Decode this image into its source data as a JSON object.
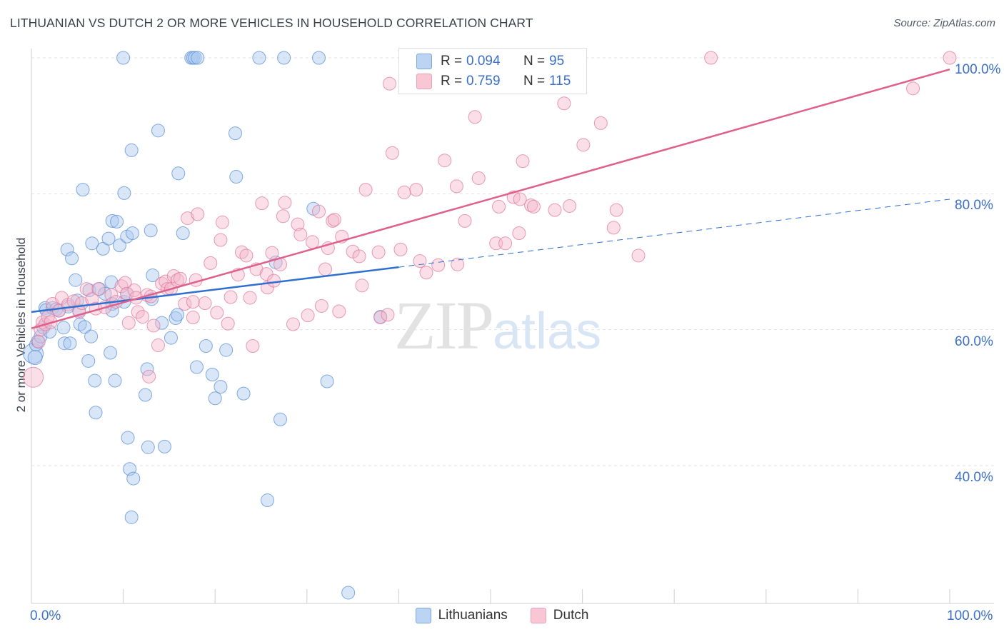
{
  "title": "LITHUANIAN VS DUTCH 2 OR MORE VEHICLES IN HOUSEHOLD CORRELATION CHART",
  "source": "Source: ZipAtlas.com",
  "watermark": {
    "zip": "ZIP",
    "atlas": "atlas"
  },
  "legend": {
    "rows": [
      {
        "r_label": "R =",
        "r_value": "0.094",
        "n_label": "N =",
        "n_value": "95"
      },
      {
        "r_label": "R =",
        "r_value": "0.759",
        "n_label": "N =",
        "n_value": "115"
      }
    ],
    "bottom": [
      "Lithuanians",
      "Dutch"
    ]
  },
  "colors": {
    "lithuanians_fill": "#a9c8ef",
    "lithuanians_stroke": "#5b8fd6",
    "lithuanians_line": "#2f6fd0",
    "dutch_fill": "#f5b8cb",
    "dutch_stroke": "#e07a9d",
    "dutch_line": "#e0608c",
    "tick_text": "#3b6fc9",
    "grid": "#e3e3e3"
  },
  "chart_data": {
    "type": "scatter",
    "title": "LITHUANIAN VS DUTCH 2 OR MORE VEHICLES IN HOUSEHOLD CORRELATION CHART",
    "xlabel": "",
    "ylabel": "2 or more Vehicles in Household",
    "xlim": [
      0,
      100
    ],
    "ylim": [
      20,
      102
    ],
    "x_tick_labels": [
      "0.0%",
      "100.0%"
    ],
    "y_ticks": [
      40,
      60,
      80,
      100
    ],
    "y_tick_labels": [
      "40.0%",
      "60.0%",
      "80.0%",
      "100.0%"
    ],
    "grid": true,
    "legend_position": "top-center",
    "series": [
      {
        "name": "Lithuanians",
        "R": 0.094,
        "N": 95,
        "trend": {
          "x0": 0,
          "y0": 62.6,
          "x1": 40,
          "y1": 69.2,
          "dash_to_x": 100,
          "dash_to_y": 79.2
        },
        "points": [
          [
            0.2,
            56.5,
            14
          ],
          [
            0.5,
            57.8,
            9
          ],
          [
            0.4,
            55.9,
            10
          ],
          [
            0.7,
            58.3,
            9
          ],
          [
            1.0,
            59.0,
            9
          ],
          [
            1.3,
            60.3,
            9
          ],
          [
            1.5,
            63.2,
            9
          ],
          [
            1.6,
            62.9,
            9
          ],
          [
            2.0,
            59.7,
            9
          ],
          [
            2.3,
            63.2,
            9
          ],
          [
            2.7,
            63.0,
            9
          ],
          [
            3.0,
            62.8,
            9
          ],
          [
            3.5,
            60.3,
            9
          ],
          [
            4.0,
            63.4,
            9
          ],
          [
            3.6,
            58.0,
            9
          ],
          [
            4.2,
            58.0,
            9
          ],
          [
            3.9,
            71.8,
            9
          ],
          [
            4.4,
            70.5,
            9
          ],
          [
            4.8,
            67.3,
            9
          ],
          [
            5.0,
            64.3,
            9
          ],
          [
            5.2,
            62.8,
            9
          ],
          [
            5.3,
            60.8,
            9
          ],
          [
            5.8,
            60.4,
            9
          ],
          [
            6.3,
            65.8,
            9
          ],
          [
            6.2,
            55.4,
            9
          ],
          [
            6.5,
            59.0,
            9
          ],
          [
            6.6,
            72.7,
            9
          ],
          [
            6.9,
            52.5,
            9
          ],
          [
            7.0,
            47.8,
            9
          ],
          [
            5.6,
            80.6,
            9
          ],
          [
            7.4,
            66.0,
            9
          ],
          [
            7.8,
            71.9,
            9
          ],
          [
            8.0,
            65.3,
            9
          ],
          [
            8.4,
            73.4,
            9
          ],
          [
            8.8,
            76.0,
            9
          ],
          [
            8.7,
            67.0,
            9
          ],
          [
            8.8,
            63.8,
            9
          ],
          [
            8.8,
            62.8,
            9
          ],
          [
            8.6,
            56.6,
            9
          ],
          [
            9.1,
            52.5,
            9
          ],
          [
            9.3,
            75.9,
            9
          ],
          [
            9.6,
            72.4,
            9
          ],
          [
            10.1,
            64.1,
            9
          ],
          [
            10.1,
            80.1,
            9
          ],
          [
            10.4,
            65.3,
            9
          ],
          [
            10.4,
            73.7,
            9
          ],
          [
            10.0,
            100,
            9
          ],
          [
            10.5,
            44.1,
            9
          ],
          [
            10.7,
            39.5,
            9
          ],
          [
            11.1,
            38.1,
            9
          ],
          [
            10.9,
            32.4,
            9
          ],
          [
            11.0,
            74.2,
            9
          ],
          [
            10.9,
            86.4,
            9
          ],
          [
            12.6,
            54.2,
            9
          ],
          [
            12.4,
            50.4,
            9
          ],
          [
            12.7,
            42.7,
            9
          ],
          [
            13.0,
            74.6,
            9
          ],
          [
            13.1,
            64.5,
            9
          ],
          [
            13.2,
            68.0,
            9
          ],
          [
            13.8,
            89.3,
            9
          ],
          [
            14.2,
            61.0,
            9
          ],
          [
            14.5,
            42.8,
            9
          ],
          [
            15.2,
            58.8,
            9
          ],
          [
            15.7,
            61.7,
            9
          ],
          [
            15.9,
            62.2,
            9
          ],
          [
            16.0,
            83.0,
            9
          ],
          [
            16.5,
            74.2,
            9
          ],
          [
            17.4,
            100,
            9
          ],
          [
            17.6,
            100,
            9
          ],
          [
            17.8,
            100,
            9
          ],
          [
            18.1,
            100,
            9
          ],
          [
            18.0,
            54.5,
            9
          ],
          [
            19.0,
            57.6,
            9
          ],
          [
            19.7,
            53.4,
            9
          ],
          [
            20.0,
            49.9,
            9
          ],
          [
            20.6,
            51.6,
            9
          ],
          [
            21.2,
            57.0,
            9
          ],
          [
            22.2,
            88.9,
            9
          ],
          [
            22.3,
            82.5,
            9
          ],
          [
            23.1,
            50.6,
            9
          ],
          [
            24.8,
            100,
            9
          ],
          [
            25.7,
            34.9,
            9
          ],
          [
            26.6,
            69.9,
            9
          ],
          [
            27.1,
            46.8,
            9
          ],
          [
            27.5,
            100,
            9
          ],
          [
            30.7,
            77.8,
            9
          ],
          [
            31.3,
            100,
            9
          ],
          [
            32.2,
            52.4,
            9
          ],
          [
            34.5,
            21.3,
            9
          ],
          [
            38.0,
            61.9,
            9
          ]
        ]
      },
      {
        "name": "Dutch",
        "R": 0.759,
        "N": 115,
        "trend": {
          "x0": 0,
          "y0": 60.2,
          "x1": 100,
          "y1": 98.3
        },
        "points": [
          [
            0.2,
            53.0,
            14
          ],
          [
            0.8,
            58.2,
            9
          ],
          [
            1.0,
            60.0,
            9
          ],
          [
            1.2,
            61.1,
            9
          ],
          [
            1.5,
            60.8,
            9
          ],
          [
            1.8,
            61.9,
            9
          ],
          [
            2.1,
            61.1,
            9
          ],
          [
            2.3,
            63.8,
            9
          ],
          [
            3.0,
            62.8,
            9
          ],
          [
            3.3,
            64.7,
            9
          ],
          [
            4.0,
            63.7,
            9
          ],
          [
            4.6,
            64.2,
            9
          ],
          [
            5.2,
            62.6,
            9
          ],
          [
            5.5,
            63.9,
            9
          ],
          [
            6.0,
            66.0,
            9
          ],
          [
            6.6,
            64.5,
            9
          ],
          [
            7.0,
            63.1,
            9
          ],
          [
            7.3,
            66.0,
            9
          ],
          [
            8.0,
            63.3,
            9
          ],
          [
            8.7,
            65.1,
            9
          ],
          [
            9.2,
            64.1,
            9
          ],
          [
            9.8,
            66.4,
            9
          ],
          [
            10.2,
            66.9,
            9
          ],
          [
            10.4,
            65.3,
            9
          ],
          [
            10.6,
            61.0,
            9
          ],
          [
            11.2,
            65.8,
            9
          ],
          [
            11.4,
            64.7,
            9
          ],
          [
            11.6,
            62.6,
            9
          ],
          [
            12.1,
            61.9,
            9
          ],
          [
            12.6,
            65.1,
            9
          ],
          [
            12.8,
            53.1,
            9
          ],
          [
            13.0,
            64.9,
            9
          ],
          [
            13.3,
            60.6,
            9
          ],
          [
            13.8,
            57.7,
            9
          ],
          [
            14.2,
            66.8,
            9
          ],
          [
            14.6,
            67.1,
            9
          ],
          [
            14.8,
            66.0,
            9
          ],
          [
            15.2,
            66.0,
            9
          ],
          [
            15.5,
            67.9,
            9
          ],
          [
            15.9,
            67.3,
            9
          ],
          [
            16.2,
            67.5,
            9
          ],
          [
            16.7,
            63.8,
            9
          ],
          [
            17.0,
            76.4,
            9
          ],
          [
            17.6,
            61.8,
            9
          ],
          [
            17.6,
            64.1,
            9
          ],
          [
            17.9,
            67.3,
            9
          ],
          [
            18.1,
            77.0,
            9
          ],
          [
            18.9,
            63.9,
            9
          ],
          [
            19.5,
            69.8,
            9
          ],
          [
            20.2,
            62.5,
            9
          ],
          [
            20.6,
            73.2,
            9
          ],
          [
            20.8,
            75.8,
            9
          ],
          [
            21.4,
            60.9,
            9
          ],
          [
            21.7,
            64.8,
            9
          ],
          [
            22.5,
            68.1,
            9
          ],
          [
            22.9,
            71.4,
            9
          ],
          [
            23.4,
            70.9,
            9
          ],
          [
            23.8,
            64.7,
            9
          ],
          [
            24.1,
            57.6,
            9
          ],
          [
            24.5,
            68.9,
            9
          ],
          [
            25.1,
            78.6,
            9
          ],
          [
            25.6,
            68.2,
            9
          ],
          [
            25.7,
            66.2,
            9
          ],
          [
            26.2,
            71.3,
            9
          ],
          [
            26.4,
            67.2,
            9
          ],
          [
            27.1,
            69.6,
            9
          ],
          [
            27.4,
            76.7,
            9
          ],
          [
            27.6,
            78.7,
            9
          ],
          [
            28.5,
            60.8,
            9
          ],
          [
            29.0,
            75.5,
            9
          ],
          [
            29.3,
            74.0,
            9
          ],
          [
            30.1,
            62.1,
            9
          ],
          [
            30.6,
            72.9,
            9
          ],
          [
            31.3,
            77.4,
            9
          ],
          [
            31.6,
            63.5,
            9
          ],
          [
            32.0,
            68.9,
            9
          ],
          [
            32.3,
            72.0,
            9
          ],
          [
            32.8,
            76.0,
            9
          ],
          [
            33.0,
            76.2,
            9
          ],
          [
            33.5,
            62.7,
            9
          ],
          [
            33.8,
            73.7,
            9
          ],
          [
            35.0,
            71.5,
            9
          ],
          [
            35.7,
            70.8,
            9
          ],
          [
            36.0,
            66.5,
            9
          ],
          [
            36.4,
            80.6,
            9
          ],
          [
            37.8,
            71.4,
            9
          ],
          [
            38.0,
            61.8,
            9
          ],
          [
            38.8,
            62.2,
            9
          ],
          [
            39.0,
            96.2,
            9
          ],
          [
            39.3,
            86.0,
            9
          ],
          [
            40.2,
            71.8,
            9
          ],
          [
            40.6,
            80.2,
            9
          ],
          [
            41.9,
            80.6,
            9
          ],
          [
            42.3,
            70.1,
            9
          ],
          [
            43.0,
            68.4,
            9
          ],
          [
            44.3,
            69.5,
            9
          ],
          [
            45.0,
            84.9,
            9
          ],
          [
            46.3,
            81.1,
            9
          ],
          [
            46.4,
            69.6,
            9
          ],
          [
            47.2,
            76.0,
            9
          ],
          [
            48.3,
            91.3,
            9
          ],
          [
            48.7,
            82.3,
            9
          ],
          [
            50.6,
            72.7,
            9
          ],
          [
            50.9,
            78.1,
            9
          ],
          [
            51.6,
            72.7,
            9
          ],
          [
            52.5,
            79.5,
            9
          ],
          [
            53.1,
            74.2,
            9
          ],
          [
            53.2,
            79.2,
            9
          ],
          [
            53.5,
            84.8,
            9
          ],
          [
            54.4,
            78.3,
            9
          ],
          [
            54.7,
            78.1,
            9
          ],
          [
            57.0,
            77.6,
            9
          ],
          [
            58.0,
            93.3,
            9
          ],
          [
            58.6,
            78.2,
            9
          ],
          [
            60.1,
            87.2,
            9
          ],
          [
            62.0,
            90.4,
            9
          ],
          [
            63.4,
            75.0,
            9
          ],
          [
            63.7,
            77.6,
            9
          ],
          [
            66.1,
            70.9,
            9
          ],
          [
            74.0,
            100,
            9
          ],
          [
            96.0,
            95.5,
            9
          ],
          [
            100,
            100,
            9
          ]
        ]
      }
    ]
  }
}
